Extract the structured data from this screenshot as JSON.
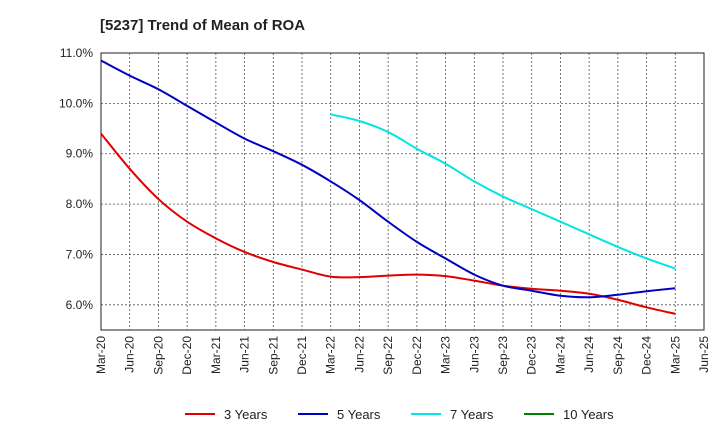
{
  "chart_data": {
    "type": "line",
    "title": "[5237]  Trend of Mean of ROA",
    "xlabel": "",
    "ylabel": "",
    "ylim": [
      5.5,
      11.0
    ],
    "yticks": [
      6.0,
      7.0,
      8.0,
      9.0,
      10.0,
      11.0
    ],
    "ytick_labels": [
      "6.0%",
      "7.0%",
      "8.0%",
      "9.0%",
      "10.0%",
      "11.0%"
    ],
    "x_categories": [
      "Mar-20",
      "Jun-20",
      "Sep-20",
      "Dec-20",
      "Mar-21",
      "Jun-21",
      "Sep-21",
      "Dec-21",
      "Mar-22",
      "Jun-22",
      "Sep-22",
      "Dec-22",
      "Mar-23",
      "Jun-23",
      "Sep-23",
      "Dec-23",
      "Mar-24",
      "Jun-24",
      "Sep-24",
      "Dec-24",
      "Mar-25",
      "Jun-25"
    ],
    "grid": true,
    "legend_position": "bottom",
    "series": [
      {
        "name": "3 Years",
        "color": "#e00000",
        "values": [
          9.4,
          8.7,
          8.1,
          7.65,
          7.32,
          7.05,
          6.85,
          6.7,
          6.56,
          6.55,
          6.58,
          6.6,
          6.57,
          6.48,
          6.38,
          6.32,
          6.28,
          6.22,
          6.1,
          5.95,
          5.82,
          null
        ]
      },
      {
        "name": "5 Years",
        "color": "#0000c0",
        "values": [
          10.85,
          10.55,
          10.28,
          9.95,
          9.62,
          9.3,
          9.05,
          8.78,
          8.45,
          8.08,
          7.65,
          7.25,
          6.92,
          6.6,
          6.38,
          6.28,
          6.18,
          6.15,
          6.2,
          6.27,
          6.33,
          null
        ]
      },
      {
        "name": "7 Years",
        "color": "#00e5e5",
        "values": [
          null,
          null,
          null,
          null,
          null,
          null,
          null,
          null,
          9.78,
          9.65,
          9.43,
          9.1,
          8.8,
          8.45,
          8.15,
          7.9,
          7.65,
          7.4,
          7.15,
          6.92,
          6.72,
          null
        ]
      },
      {
        "name": "10 Years",
        "color": "#008000",
        "values": [
          null,
          null,
          null,
          null,
          null,
          null,
          null,
          null,
          null,
          null,
          null,
          null,
          null,
          null,
          null,
          null,
          null,
          null,
          null,
          null,
          null,
          null
        ]
      }
    ]
  }
}
